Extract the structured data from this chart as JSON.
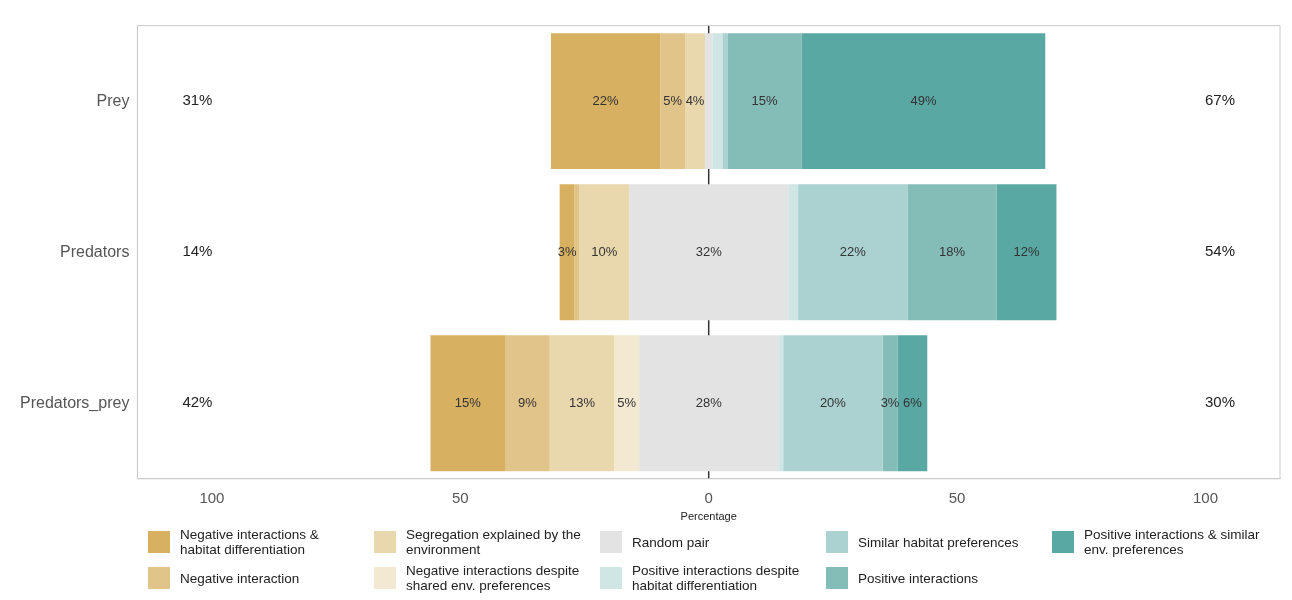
{
  "chart_data": {
    "type": "bar",
    "orientation": "horizontal",
    "categories": [
      "Prey",
      "Predators",
      "Predators_prey"
    ],
    "series": [
      {
        "name": "Negative interactions & habitat differentiation",
        "color": "#d7b061",
        "base": [
          -31.75,
          -30,
          -56
        ],
        "values": [
          22,
          3,
          15
        ],
        "value_labels": [
          "22%",
          "3%",
          "15%"
        ]
      },
      {
        "name": "Negative interaction",
        "color": "#e1c48a",
        "base": [
          -9.75,
          -27,
          -41
        ],
        "values": [
          5,
          1,
          9
        ],
        "value_labels": [
          "5%",
          null,
          "9%"
        ]
      },
      {
        "name": "Segregation explained by the environment",
        "color": "#e9d7ae",
        "base": [
          -4.75,
          -26,
          -32
        ],
        "values": [
          4,
          10,
          13
        ],
        "value_labels": [
          "4%",
          "10%",
          "13%"
        ]
      },
      {
        "name": "Negative interactions despite shared env. preferences",
        "color": "#f3e8d1",
        "base": [
          null,
          null,
          -19
        ],
        "values": [
          null,
          null,
          5
        ],
        "value_labels": [
          null,
          null,
          "5%"
        ]
      },
      {
        "name": "Random pair",
        "color": "#e3e3e3",
        "base": [
          -0.75,
          -16,
          -14
        ],
        "values": [
          1.5,
          32,
          28
        ],
        "value_labels": [
          null,
          "32%",
          "28%"
        ]
      },
      {
        "name": "Positive interactions despite habitat differentiation",
        "color": "#d0e6e5",
        "base": [
          0.75,
          16,
          14
        ],
        "values": [
          2,
          2,
          1
        ],
        "value_labels": [
          null,
          null,
          null
        ]
      },
      {
        "name": "Similar habitat preferences",
        "color": "#abd1d1",
        "base": [
          2.75,
          18,
          15
        ],
        "values": [
          1,
          22,
          20
        ],
        "value_labels": [
          null,
          "22%",
          "20%"
        ]
      },
      {
        "name": "Positive interactions",
        "color": "#84bcb8",
        "base": [
          3.75,
          40,
          35
        ],
        "values": [
          15,
          18,
          3
        ],
        "value_labels": [
          "15%",
          "18%",
          "3%"
        ]
      },
      {
        "name": "Positive interactions & similar env. preferences",
        "color": "#5aa8a3",
        "base": [
          18.75,
          58,
          38
        ],
        "values": [
          49,
          12,
          6
        ],
        "value_labels": [
          "49%",
          "12%",
          "6%"
        ]
      }
    ],
    "xlim": [
      -115,
      115
    ],
    "xticks": [
      {
        "value": -100,
        "label": "100"
      },
      {
        "value": -50,
        "label": "50"
      },
      0,
      50,
      100
    ],
    "xlabel": "Percentage",
    "grid": false,
    "legend": "bottom",
    "ref_lines": [
      {
        "axis": "x",
        "value": 0,
        "color": "#333333"
      }
    ],
    "annotations": [
      "31%",
      "67%",
      "14%",
      "54%",
      "42%",
      "30%"
    ]
  }
}
